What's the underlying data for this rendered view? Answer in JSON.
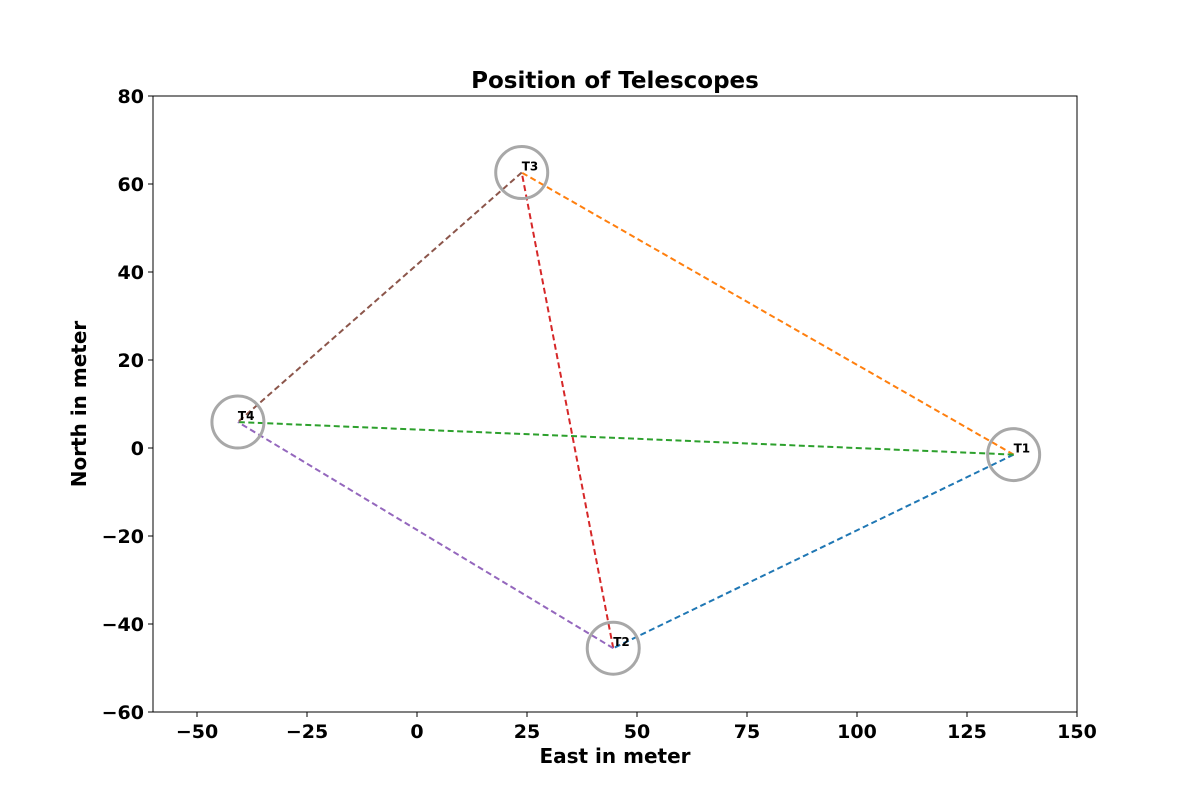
{
  "chart_data": {
    "type": "scatter",
    "title": "Position of Telescopes",
    "xlabel": "East in meter",
    "ylabel": "North in meter",
    "xlim": [
      -60,
      150
    ],
    "ylim": [
      -60,
      80
    ],
    "xticks": [
      -50,
      -25,
      0,
      25,
      50,
      75,
      100,
      125,
      150
    ],
    "xtick_labels": [
      "−50",
      "−25",
      "0",
      "25",
      "50",
      "75",
      "100",
      "125",
      "150"
    ],
    "yticks": [
      -60,
      -40,
      -20,
      0,
      20,
      40,
      60,
      80
    ],
    "ytick_labels": [
      "−60",
      "−40",
      "−20",
      "0",
      "20",
      "40",
      "60",
      "80"
    ],
    "grid": false,
    "marker": "circle",
    "marker_color": "#a8a8a8",
    "points": [
      {
        "label": "T1",
        "x": 135.6,
        "y": -1.5
      },
      {
        "label": "T2",
        "x": 44.6,
        "y": -45.5
      },
      {
        "label": "T3",
        "x": 23.8,
        "y": 62.6
      },
      {
        "label": "T4",
        "x": -40.7,
        "y": 5.9
      }
    ],
    "baselines": [
      {
        "from": "T1",
        "to": "T2",
        "color": "#1f77b4"
      },
      {
        "from": "T1",
        "to": "T3",
        "color": "#ff7f0e"
      },
      {
        "from": "T1",
        "to": "T4",
        "color": "#2ca02c"
      },
      {
        "from": "T2",
        "to": "T3",
        "color": "#d62728"
      },
      {
        "from": "T2",
        "to": "T4",
        "color": "#9467bd"
      },
      {
        "from": "T3",
        "to": "T4",
        "color": "#8c564b"
      }
    ]
  }
}
